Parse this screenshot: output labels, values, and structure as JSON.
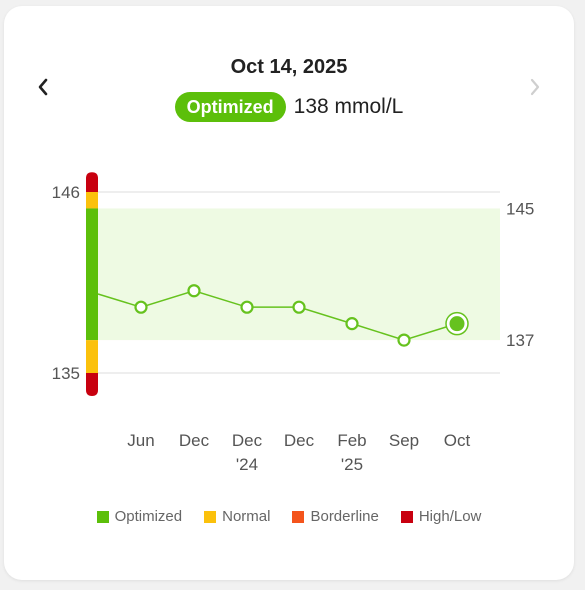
{
  "header": {
    "date": "Oct 14, 2025",
    "status_label": "Optimized",
    "reading": "138 mmol/L"
  },
  "colors": {
    "optimized": "#5cbf0a",
    "normal": "#fbc10c",
    "borderline": "#f4541c",
    "high_low": "#c8000f",
    "band_fill": "#eefae3",
    "line": "#66c21e"
  },
  "chart_data": {
    "type": "line",
    "x_tick_labels": [
      "Jun",
      "Dec",
      "Dec\n'24",
      "Dec",
      "Feb\n'25",
      "Sep",
      "Oct"
    ],
    "values": [
      139,
      140,
      139,
      139,
      138,
      137,
      138
    ],
    "incoming_value": 139.8,
    "highlighted_index": 6,
    "ylim": [
      135,
      146
    ],
    "left_axis_labels": [
      146,
      135
    ],
    "optimized_range": [
      137,
      145
    ],
    "right_axis_labels": [
      145,
      137
    ],
    "gridlines": [
      146,
      135
    ],
    "scale_bar": [
      {
        "level": "High/Low",
        "from": 146,
        "to": 147.2
      },
      {
        "level": "Normal",
        "from": 145,
        "to": 146
      },
      {
        "level": "Optimized",
        "from": 137,
        "to": 145
      },
      {
        "level": "Normal",
        "from": 135,
        "to": 137
      },
      {
        "level": "High/Low",
        "from": 133.6,
        "to": 135
      }
    ]
  },
  "legend": [
    {
      "label": "Optimized",
      "color": "#5cbf0a"
    },
    {
      "label": "Normal",
      "color": "#fbc10c"
    },
    {
      "label": "Borderline",
      "color": "#f4541c"
    },
    {
      "label": "High/Low",
      "color": "#c8000f"
    }
  ]
}
